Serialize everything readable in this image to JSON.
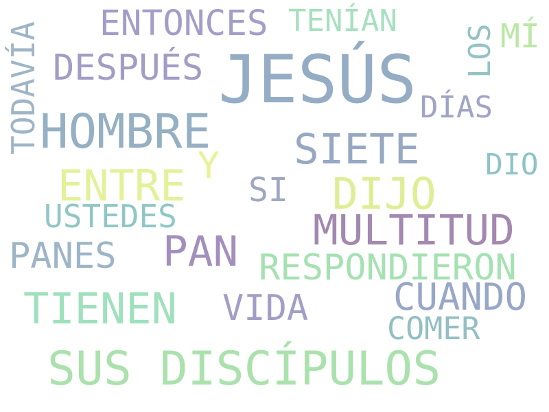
{
  "words": [
    {
      "text": "JESÚS",
      "color": "#94acc4"
    },
    {
      "text": "SUS DISCÍPULOS",
      "color": "#abe1ad"
    },
    {
      "text": "HOMBRE",
      "color": "#95afc3"
    },
    {
      "text": "MULTITUD",
      "color": "#a388b0"
    },
    {
      "text": "DIJO",
      "color": "#dfee96"
    },
    {
      "text": "ENTONCES",
      "color": "#a39ec8"
    },
    {
      "text": "DESPUÉS",
      "color": "#a39cc4"
    },
    {
      "text": "RESPONDIERON",
      "color": "#a5e1b2"
    },
    {
      "text": "TIENEN",
      "color": "#9fe0bd"
    },
    {
      "text": "SIETE",
      "color": "#97a8c2"
    },
    {
      "text": "PAN",
      "color": "#a38fbc"
    },
    {
      "text": "ENTRE",
      "color": "#e3f19a"
    },
    {
      "text": "CUANDO",
      "color": "#98a7c7"
    },
    {
      "text": "TODAVÍA",
      "color": "#9fb5c7"
    },
    {
      "text": "PANES",
      "color": "#9eb4c7"
    },
    {
      "text": "VIDA",
      "color": "#a29ec6"
    },
    {
      "text": "USTEDES",
      "color": "#90c7c5"
    },
    {
      "text": "TENÍAN",
      "color": "#a7e0bf"
    },
    {
      "text": "COMER",
      "color": "#94bec4"
    },
    {
      "text": "DÍAS",
      "color": "#a0a4c6"
    },
    {
      "text": "LOS",
      "color": "#94c3c4"
    },
    {
      "text": "MÍ",
      "color": "#bbe8a5"
    },
    {
      "text": "SI",
      "color": "#9fa7c2"
    },
    {
      "text": "DIO",
      "color": "#8fc3c7"
    },
    {
      "text": "Y",
      "color": "#e8f298"
    }
  ]
}
